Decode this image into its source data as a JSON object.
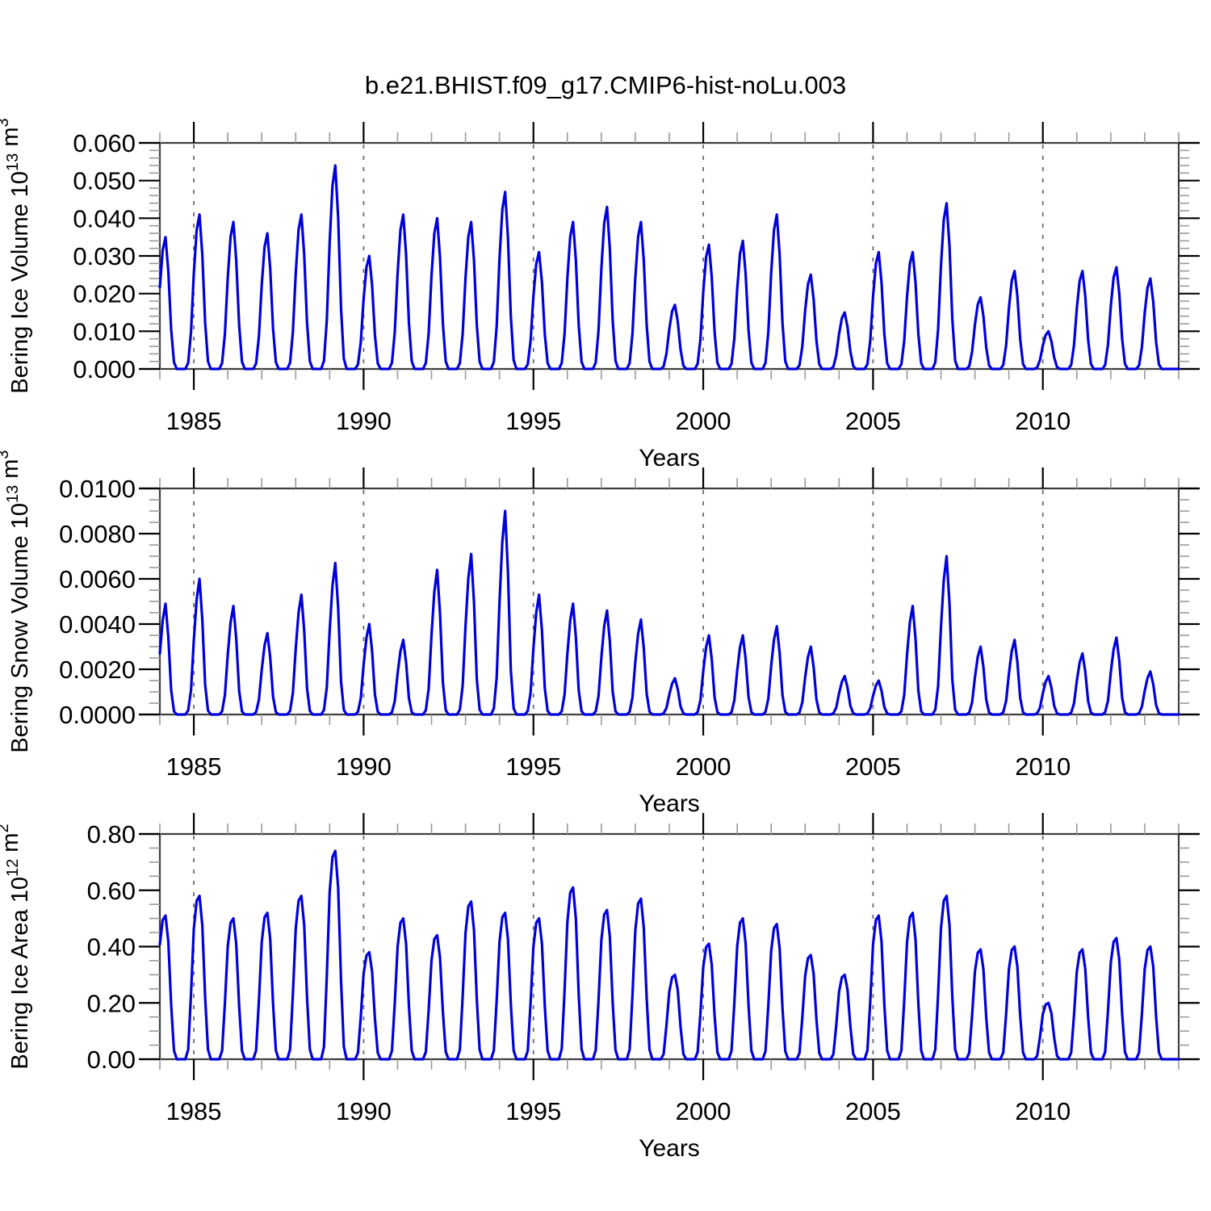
{
  "title": "b.e21.BHIST.f09_g17.CMIP6-hist-noLu.003",
  "colors": {
    "line": "#0000dd",
    "frame": "#3f3f3f",
    "major_tick": "#000000",
    "minor_tick": "#9a9a9a",
    "grid": "#6b6b6b",
    "text": "#000000",
    "background": "#ffffff"
  },
  "x_axis": {
    "label": "Years",
    "range": [
      1984,
      2014
    ],
    "major_ticks": [
      1985,
      1990,
      1995,
      2000,
      2005,
      2010
    ],
    "minor_tick_interval_years": 1,
    "gridlines": "dashed vertical at major ticks"
  },
  "chart_data": [
    {
      "id": "bering_ice_volume",
      "type": "line",
      "title": "",
      "ylabel": "Bering Ice Volume 10^13 m^3",
      "ylabel_parts": [
        {
          "text": "Bering Ice Volume 10",
          "sup": false
        },
        {
          "text": "13",
          "sup": true
        },
        {
          "text": " m",
          "sup": false
        },
        {
          "text": "3",
          "sup": true
        }
      ],
      "ylim": [
        0,
        0.06
      ],
      "ytick_values": [
        0.0,
        0.01,
        0.02,
        0.03,
        0.04,
        0.05,
        0.06
      ],
      "ytick_decimals": 3,
      "y_minor_step": 0.002,
      "xlabel": "Years",
      "grid": "vertical dashed only",
      "legend": "none",
      "series_name": "Bering Ice Volume",
      "years": [
        1984,
        1985,
        1986,
        1987,
        1988,
        1989,
        1990,
        1991,
        1992,
        1993,
        1994,
        1995,
        1996,
        1997,
        1998,
        1999,
        2000,
        2001,
        2002,
        2003,
        2004,
        2005,
        2006,
        2007,
        2008,
        2009,
        2010,
        2011,
        2012,
        2013
      ],
      "annual_peak_values": [
        0.035,
        0.041,
        0.039,
        0.036,
        0.041,
        0.054,
        0.03,
        0.041,
        0.04,
        0.039,
        0.047,
        0.031,
        0.039,
        0.043,
        0.039,
        0.017,
        0.033,
        0.034,
        0.041,
        0.025,
        0.015,
        0.031,
        0.031,
        0.044,
        0.019,
        0.026,
        0.01,
        0.026,
        0.027,
        0.024
      ],
      "seasonal_weights_jan_to_dec": [
        0.62,
        0.9,
        1.0,
        0.74,
        0.3,
        0.05,
        0,
        0,
        0,
        0,
        0.04,
        0.24
      ],
      "seasonal_note": "Annual pulse: zero Jul-Oct, rises Nov-Dec toward next year's peak, maximum ~March, decays to zero by July"
    },
    {
      "id": "bering_snow_volume",
      "type": "line",
      "title": "",
      "ylabel": "Bering Snow Volume 10^13 m^3",
      "ylabel_parts": [
        {
          "text": "Bering Snow Volume 10",
          "sup": false
        },
        {
          "text": "13",
          "sup": true
        },
        {
          "text": " m",
          "sup": false
        },
        {
          "text": "3",
          "sup": true
        }
      ],
      "ylim": [
        0,
        0.01
      ],
      "ytick_values": [
        0.0,
        0.002,
        0.004,
        0.006,
        0.008,
        0.01
      ],
      "ytick_decimals": 4,
      "y_minor_step": 0.0005,
      "xlabel": "Years",
      "grid": "vertical dashed only",
      "legend": "none",
      "series_name": "Bering Snow Volume",
      "years": [
        1984,
        1985,
        1986,
        1987,
        1988,
        1989,
        1990,
        1991,
        1992,
        1993,
        1994,
        1995,
        1996,
        1997,
        1998,
        1999,
        2000,
        2001,
        2002,
        2003,
        2004,
        2005,
        2006,
        2007,
        2008,
        2009,
        2010,
        2011,
        2012,
        2013
      ],
      "annual_peak_values": [
        0.0049,
        0.006,
        0.0048,
        0.0036,
        0.0053,
        0.0067,
        0.004,
        0.0033,
        0.0064,
        0.0071,
        0.009,
        0.0053,
        0.0049,
        0.0046,
        0.0042,
        0.0016,
        0.0035,
        0.0035,
        0.0039,
        0.003,
        0.0017,
        0.0015,
        0.0048,
        0.007,
        0.003,
        0.0033,
        0.0017,
        0.0027,
        0.0034,
        0.0019
      ],
      "seasonal_weights_jan_to_dec": [
        0.55,
        0.85,
        1.0,
        0.7,
        0.22,
        0.03,
        0,
        0,
        0,
        0,
        0.03,
        0.18
      ],
      "seasonal_note": "Annual pulse: zero Jul-Oct, rises Nov-Dec toward next year's peak, maximum ~March, decays to zero by July"
    },
    {
      "id": "bering_ice_area",
      "type": "line",
      "title": "",
      "ylabel": "Bering Ice Area 10^12 m^2",
      "ylabel_parts": [
        {
          "text": "Bering Ice Area 10",
          "sup": false
        },
        {
          "text": "12",
          "sup": true
        },
        {
          "text": " m",
          "sup": false
        },
        {
          "text": "2",
          "sup": true
        }
      ],
      "ylim": [
        0,
        0.8
      ],
      "ytick_values": [
        0.0,
        0.2,
        0.4,
        0.6,
        0.8
      ],
      "ytick_decimals": 2,
      "y_minor_step": 0.05,
      "xlabel": "Years",
      "grid": "vertical dashed only",
      "legend": "none",
      "series_name": "Bering Ice Area",
      "years": [
        1984,
        1985,
        1986,
        1987,
        1988,
        1989,
        1990,
        1991,
        1992,
        1993,
        1994,
        1995,
        1996,
        1997,
        1998,
        1999,
        2000,
        2001,
        2002,
        2003,
        2004,
        2005,
        2006,
        2007,
        2008,
        2009,
        2010,
        2011,
        2012,
        2013
      ],
      "annual_peak_values": [
        0.51,
        0.58,
        0.5,
        0.52,
        0.58,
        0.74,
        0.38,
        0.5,
        0.44,
        0.56,
        0.52,
        0.5,
        0.61,
        0.53,
        0.57,
        0.3,
        0.41,
        0.5,
        0.48,
        0.37,
        0.3,
        0.51,
        0.52,
        0.58,
        0.39,
        0.4,
        0.2,
        0.39,
        0.43,
        0.4
      ],
      "seasonal_weights_jan_to_dec": [
        0.8,
        0.97,
        1.0,
        0.82,
        0.38,
        0.06,
        0,
        0,
        0,
        0,
        0.06,
        0.4
      ],
      "seasonal_note": "Annual pulse: zero Jul-Oct, rises Nov-Dec toward next year's peak, maximum ~March, decays to zero by July"
    }
  ]
}
